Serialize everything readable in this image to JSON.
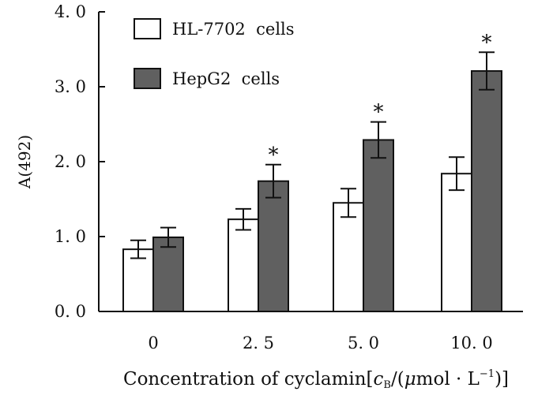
{
  "chart_data": {
    "type": "bar",
    "title": "",
    "xlabel_parts": {
      "prefix": "Concentration of cyclamin[",
      "var": "c",
      "sub": "B",
      "mid": "/(",
      "mu": "μ",
      "unit": "mol · L",
      "sup": "−1",
      "suffix": ")]"
    },
    "ylabel": "A(492)",
    "ylim": [
      0,
      4.0
    ],
    "yticks": [
      "0. 0",
      "1. 0",
      "2. 0",
      "3. 0",
      "4. 0"
    ],
    "ytick_values": [
      0,
      1,
      2,
      3,
      4
    ],
    "categories": [
      "0",
      "2. 5",
      "5. 0",
      "10. 0"
    ],
    "series": [
      {
        "name": "HL-7702  cells",
        "color": "#ffffff",
        "values": [
          0.83,
          1.23,
          1.45,
          1.84
        ],
        "errors": [
          0.12,
          0.14,
          0.19,
          0.22
        ],
        "significance": [
          "",
          "",
          "",
          ""
        ]
      },
      {
        "name": "HepG2  cells",
        "color": "#606060",
        "values": [
          0.99,
          1.74,
          2.29,
          3.21
        ],
        "errors": [
          0.13,
          0.22,
          0.24,
          0.25
        ],
        "significance": [
          "",
          "*",
          "*",
          "*"
        ]
      }
    ],
    "legend_position": "top-left"
  }
}
